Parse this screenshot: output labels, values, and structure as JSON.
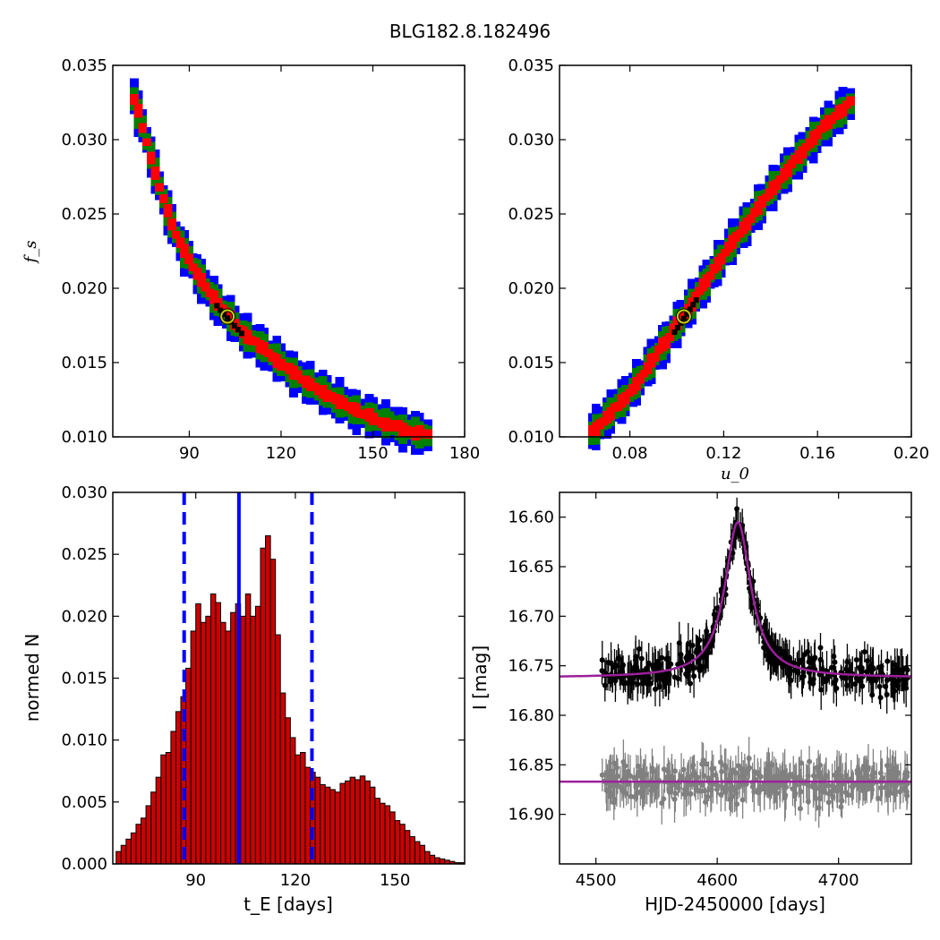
{
  "title": "BLG182.8.182496",
  "colors": {
    "outer": "#0000ff",
    "mid": "#008000",
    "inner": "#ff0000",
    "core": "#000000",
    "marker": "#cccc00",
    "hist_bar": "#cc0000",
    "vline": "#0000ff",
    "model": "#9b209b",
    "data_main": "#000000",
    "data_resid": "#808080"
  },
  "chart_data": [
    {
      "type": "heatmap",
      "id": "tE_fs",
      "xlabel": "",
      "ylabel": "f_s",
      "xlim": [
        65,
        180
      ],
      "ylim": [
        0.01,
        0.035
      ],
      "xticks": [
        "90",
        "120",
        "150",
        "180"
      ],
      "yticks": [
        "0.010",
        "0.015",
        "0.020",
        "0.025",
        "0.030",
        "0.035"
      ],
      "best_fit": {
        "x": 102.5,
        "y": 0.0181
      },
      "ridge": [
        [
          72,
          0.0328
        ],
        [
          76,
          0.03
        ],
        [
          80,
          0.027
        ],
        [
          84,
          0.0245
        ],
        [
          88,
          0.0226
        ],
        [
          94,
          0.0205
        ],
        [
          100,
          0.0188
        ],
        [
          108,
          0.017
        ],
        [
          116,
          0.0156
        ],
        [
          126,
          0.014
        ],
        [
          136,
          0.0127
        ],
        [
          146,
          0.0116
        ],
        [
          156,
          0.0108
        ],
        [
          164,
          0.0103
        ],
        [
          168,
          0.0101
        ]
      ]
    },
    {
      "type": "heatmap",
      "id": "u0_fs",
      "xlabel": "u_0",
      "ylabel": "",
      "xlim": [
        0.05,
        0.2
      ],
      "ylim": [
        0.01,
        0.035
      ],
      "xticks": [
        "0.08",
        "0.12",
        "0.16",
        "0.20"
      ],
      "yticks": [
        "0.010",
        "0.015",
        "0.020",
        "0.025",
        "0.030",
        "0.035"
      ],
      "best_fit": {
        "x": 0.103,
        "y": 0.0181
      },
      "ridge": [
        [
          0.064,
          0.0103
        ],
        [
          0.08,
          0.013
        ],
        [
          0.1,
          0.0175
        ],
        [
          0.12,
          0.0222
        ],
        [
          0.14,
          0.0266
        ],
        [
          0.16,
          0.0304
        ],
        [
          0.174,
          0.0325
        ]
      ]
    },
    {
      "type": "bar",
      "id": "tE_hist",
      "xlabel": "t_E [days]",
      "ylabel": "normed N",
      "xlim": [
        65,
        171
      ],
      "ylim": [
        0,
        0.03
      ],
      "xticks": [
        "90",
        "120",
        "150"
      ],
      "yticks": [
        "0.000",
        "0.005",
        "0.010",
        "0.015",
        "0.020",
        "0.025",
        "0.030"
      ],
      "bin_start": 66,
      "bin_width": 1.5,
      "values": [
        0.001,
        0.0015,
        0.002,
        0.0025,
        0.0032,
        0.0037,
        0.0047,
        0.0058,
        0.007,
        0.0088,
        0.009,
        0.0107,
        0.0123,
        0.0135,
        0.0158,
        0.0188,
        0.021,
        0.0195,
        0.02,
        0.0218,
        0.0211,
        0.0195,
        0.0188,
        0.0203,
        0.021,
        0.02,
        0.0218,
        0.02,
        0.0208,
        0.0255,
        0.0265,
        0.0246,
        0.0185,
        0.0138,
        0.0118,
        0.0102,
        0.0088,
        0.009,
        0.0078,
        0.0074,
        0.007,
        0.0064,
        0.0062,
        0.006,
        0.0058,
        0.0065,
        0.0067,
        0.007,
        0.0068,
        0.0071,
        0.0067,
        0.0062,
        0.0053,
        0.0049,
        0.0047,
        0.0042,
        0.0035,
        0.0032,
        0.0027,
        0.0022,
        0.0018,
        0.0015,
        0.001,
        0.0007,
        0.0005,
        0.0004,
        0.0003,
        0.0002,
        0.0001,
        0.0001
      ],
      "median": 103,
      "bounds": [
        86.5,
        125
      ]
    },
    {
      "type": "scatter",
      "id": "lightcurve",
      "xlabel": "HJD-2450000 [days]",
      "ylabel": "I [mag]",
      "xlim": [
        4470,
        4760
      ],
      "ylim": [
        16.95,
        16.575
      ],
      "xticks": [
        "4500",
        "4600",
        "4700"
      ],
      "yticks": [
        "16.60",
        "16.65",
        "16.70",
        "16.75",
        "16.80",
        "16.85",
        "16.90"
      ],
      "model": {
        "t0": 4617,
        "base": 16.762,
        "peak": 16.605,
        "width": 13
      },
      "resid_level": 16.867
    }
  ]
}
